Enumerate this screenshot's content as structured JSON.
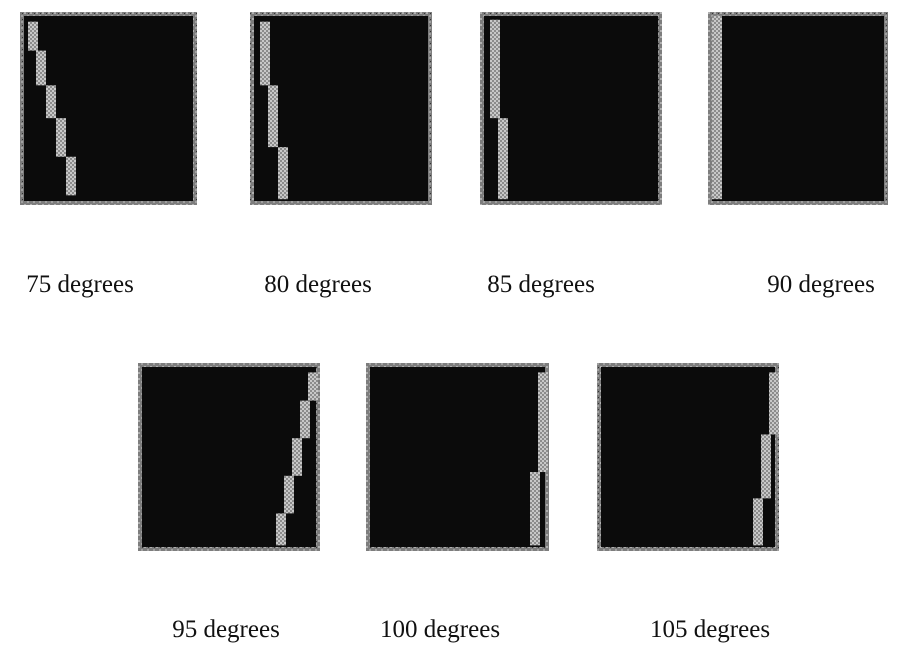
{
  "figures": [
    {
      "caption": "75 degrees"
    },
    {
      "caption": "80 degrees"
    },
    {
      "caption": "85 degrees"
    },
    {
      "caption": "90 degrees"
    },
    {
      "caption": "95 degrees"
    },
    {
      "caption": "100 degrees"
    },
    {
      "caption": "105 degrees"
    }
  ]
}
